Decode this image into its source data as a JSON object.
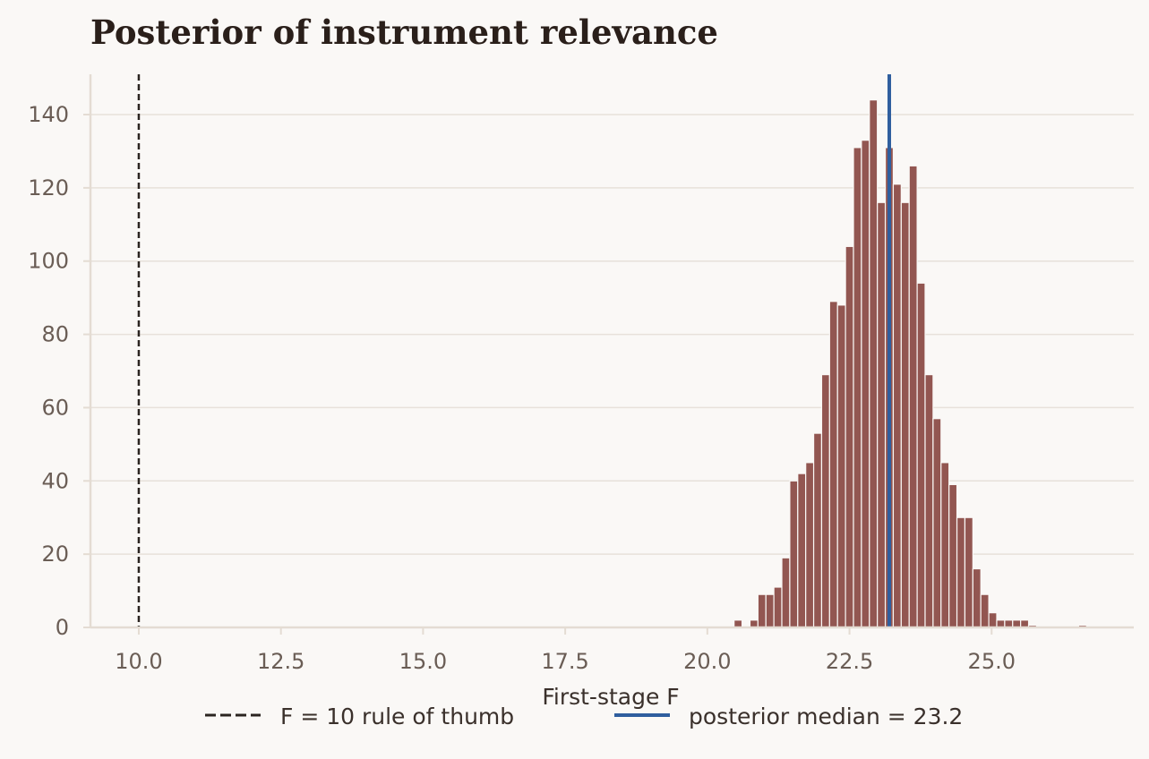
{
  "chart_data": {
    "type": "bar",
    "title": "Posterior of instrument relevance",
    "xlabel": "First-stage F",
    "ylabel": "",
    "xlim": [
      9.15,
      27.5
    ],
    "ylim": [
      0,
      151
    ],
    "xticks": [
      10.0,
      12.5,
      15.0,
      17.5,
      20.0,
      22.5,
      25.0
    ],
    "xtick_labels": [
      "10.0",
      "12.5",
      "15.0",
      "17.5",
      "20.0",
      "22.5",
      "25.0"
    ],
    "yticks": [
      0,
      20,
      40,
      60,
      80,
      100,
      120,
      140
    ],
    "ytick_labels": [
      "0",
      "20",
      "40",
      "60",
      "80",
      "100",
      "120",
      "140"
    ],
    "grid": "horizontal",
    "legend_position": "bottom-center",
    "bin_width": 0.14,
    "bin_centers": [
      20.54,
      20.82,
      20.96,
      21.1,
      21.24,
      21.38,
      21.52,
      21.66,
      21.8,
      21.94,
      22.08,
      22.22,
      22.36,
      22.5,
      22.64,
      22.78,
      22.92,
      23.06,
      23.2,
      23.34,
      23.48,
      23.62,
      23.76,
      23.9,
      24.04,
      24.18,
      24.32,
      24.46,
      24.6,
      24.74,
      24.88,
      25.02,
      25.16,
      25.3,
      25.44,
      25.58,
      25.72,
      26.6
    ],
    "values": [
      2,
      2,
      9,
      9,
      11,
      19,
      40,
      42,
      45,
      53,
      69,
      89,
      88,
      104,
      131,
      133,
      144,
      116,
      131,
      121,
      116,
      126,
      94,
      69,
      57,
      45,
      39,
      30,
      30,
      16,
      9,
      4,
      2,
      2,
      2,
      2,
      0.6,
      0.6
    ],
    "series": [
      {
        "name": "F = 10 rule of thumb",
        "kind": "vline",
        "x": 10.0,
        "color": "#2a2420",
        "style": "dashed"
      },
      {
        "name": "posterior median = 23.2",
        "kind": "vline",
        "x": 23.2,
        "color": "#2f5e9e",
        "style": "solid"
      }
    ],
    "colors": {
      "bars": "#925651",
      "bar_edge": "#faf8f6",
      "grid": "#e7e1da",
      "spine": "#e4dcd3",
      "background": "#faf8f6"
    }
  }
}
